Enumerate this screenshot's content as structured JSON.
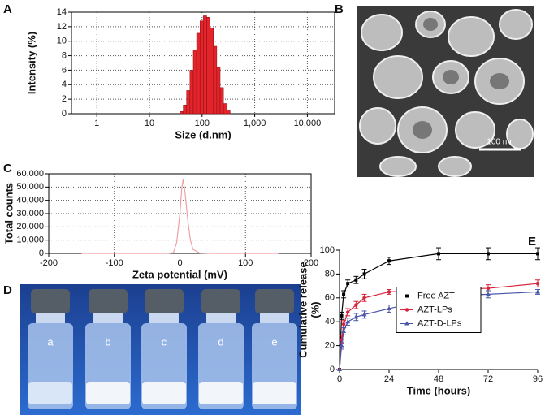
{
  "chart_data": [
    {
      "type": "histogram",
      "panel": "A",
      "xlabel": "Size (d.nm)",
      "ylabel": "Intensity (%)",
      "bins": [
        37.8,
        43.8,
        50.7,
        58.8,
        68.1,
        78.8,
        91.3,
        105.7,
        122.4,
        141.8,
        164.2,
        190.1,
        220.2,
        255.0,
        295.3,
        342.0
      ],
      "counts": [
        0.3,
        1.2,
        3.2,
        6.0,
        8.8,
        11.1,
        12.8,
        13.5,
        13.3,
        11.8,
        9.3,
        6.4,
        3.6,
        1.4,
        0.4
      ],
      "color": "#e3242b",
      "xscale": "log",
      "xlim": [
        0.33,
        33000
      ],
      "xticks": [
        1,
        10,
        100,
        {
          "value": 1000,
          "label": "1,000"
        },
        {
          "value": 10000,
          "label": "10,000"
        }
      ],
      "ylim": [
        0,
        14
      ],
      "yticks": [
        0,
        2,
        4,
        6,
        8,
        10,
        12,
        14
      ],
      "grid": true
    },
    {
      "type": "line",
      "panel": "C",
      "xlabel": "Zeta potential (mV)",
      "ylabel": "Total counts",
      "x": [
        -150,
        -20,
        -10,
        -5,
        0,
        3,
        5,
        8,
        12,
        16,
        20,
        30,
        50,
        100,
        150
      ],
      "values": [
        0,
        0,
        500,
        8000,
        30000,
        50000,
        56000,
        45000,
        25000,
        10000,
        3000,
        300,
        0,
        0,
        0
      ],
      "color": "#f0a0a0",
      "xlim": [
        -200,
        200
      ],
      "xticks": [
        -200,
        -100,
        0,
        100,
        200
      ],
      "ylim": [
        0,
        60000
      ],
      "yticks": [
        0,
        {
          "value": 10000,
          "label": "10,000"
        },
        {
          "value": 20000,
          "label": "20,000"
        },
        {
          "value": 30000,
          "label": "30,000"
        },
        {
          "value": 40000,
          "label": "40,000"
        },
        {
          "value": 50000,
          "label": "50,000"
        },
        {
          "value": 60000,
          "label": "60,000"
        }
      ],
      "grid": true
    },
    {
      "type": "line",
      "panel": "E",
      "xlabel": "Time (hours)",
      "ylabel": [
        "Cumulative release",
        "(%)"
      ],
      "x": [
        0,
        1,
        2,
        4,
        8,
        12,
        24,
        48,
        72,
        96
      ],
      "series": [
        {
          "name": "Free AZT",
          "color": "#000000",
          "marker": "square",
          "values": [
            0,
            45,
            63,
            72,
            75,
            80,
            91,
            97,
            97,
            97
          ],
          "errors": [
            0,
            3,
            3,
            3,
            3,
            4,
            3,
            5,
            5,
            5
          ]
        },
        {
          "name": "AZT-LPs",
          "color": "#d6223a",
          "marker": "circle",
          "values": [
            0,
            25,
            38,
            48,
            54,
            60,
            65,
            67,
            68,
            72
          ],
          "errors": [
            0,
            3,
            3,
            3,
            3,
            3,
            2,
            2,
            3,
            3
          ]
        },
        {
          "name": "AZT-D-LPs",
          "color": "#4b57a8",
          "marker": "triangle",
          "values": [
            0,
            20,
            32,
            40,
            44,
            46,
            51,
            61,
            63,
            65
          ],
          "errors": [
            0,
            3,
            3,
            3,
            3,
            3,
            3,
            3,
            3,
            2
          ]
        }
      ],
      "xlim": [
        0,
        96
      ],
      "xticks": [
        0,
        24,
        48,
        72,
        96
      ],
      "ylim": [
        0,
        100
      ],
      "yticks": [
        0,
        20,
        40,
        60,
        80,
        100
      ],
      "grid": false,
      "legend": "center"
    }
  ],
  "image_b": {
    "panel": "B",
    "scale_bar": "100 nm"
  },
  "photo_d": {
    "panel": "D",
    "labels": [
      "a",
      "b",
      "c",
      "d",
      "e"
    ]
  }
}
